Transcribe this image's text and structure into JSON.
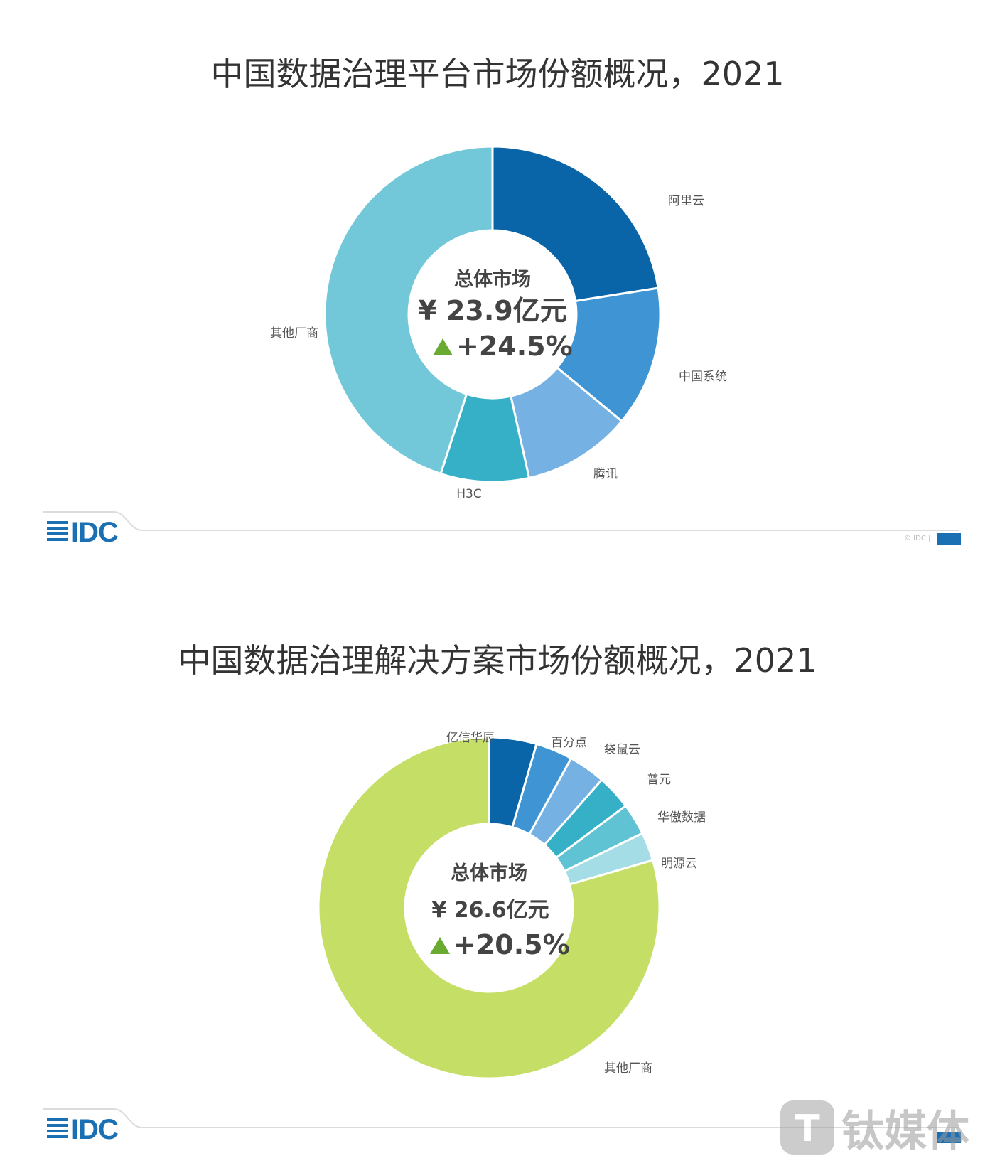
{
  "chart_data": [
    {
      "type": "pie",
      "donut": true,
      "title": "中国数据治理平台市场份额概况，2021",
      "center": {
        "title": "总体市场",
        "total": "¥ 23.9亿元",
        "growth": "+24.5%"
      },
      "categories": [
        "阿里云",
        "中国系统",
        "腾讯",
        "H3C",
        "其他厂商"
      ],
      "values": [
        22.5,
        13.5,
        10.5,
        8.5,
        45.0
      ],
      "colors": [
        "#0a64a8",
        "#3f95d3",
        "#75b1e2",
        "#35b0c7",
        "#72c8d9"
      ]
    },
    {
      "type": "pie",
      "donut": true,
      "title": "中国数据治理解决方案市场份额概况，2021",
      "center": {
        "title": "总体市场",
        "total": "¥ 26.6亿元",
        "growth": "+20.5%"
      },
      "categories": [
        "亿信华辰",
        "百分点",
        "袋鼠云",
        "普元",
        "华傲数据",
        "明源云",
        "其他厂商"
      ],
      "values": [
        4.5,
        3.5,
        3.5,
        3.3,
        3.0,
        2.7,
        79.5
      ],
      "colors": [
        "#0a64a8",
        "#3f95d3",
        "#75b1e2",
        "#35b0c7",
        "#5fc3d3",
        "#a4dde6",
        "#c5de65"
      ]
    }
  ],
  "footer": {
    "logo_text": "IDC",
    "copyright": "© IDC |"
  },
  "colors": {
    "growth_arrow": "#6aaa30",
    "brand": "#1b6fb3"
  },
  "watermark": {
    "text": "钛媒体",
    "icon": "tmt-logo-icon"
  }
}
